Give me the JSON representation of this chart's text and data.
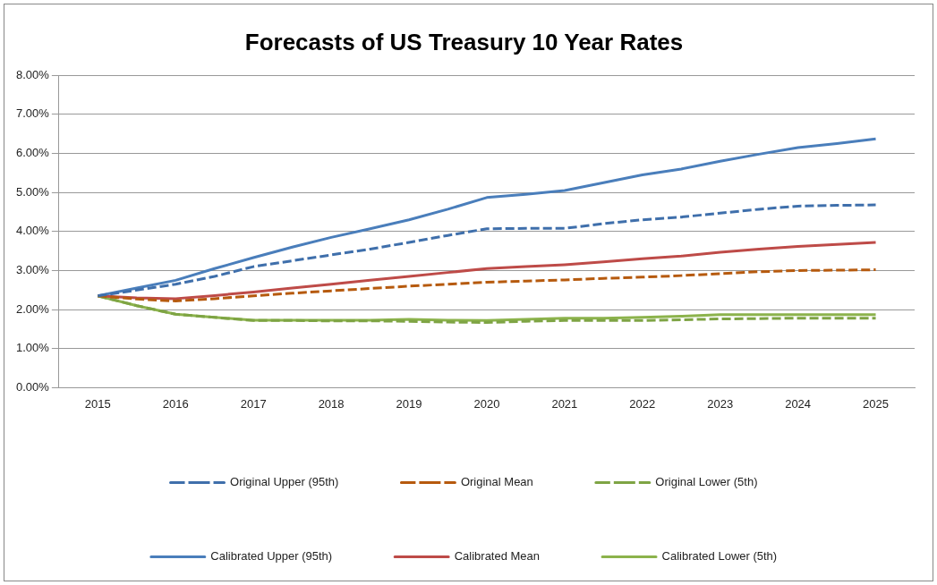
{
  "chart_data": {
    "type": "line",
    "title": "Forecasts of US Treasury 10 Year Rates",
    "x": [
      2015,
      2015.5,
      2016,
      2016.5,
      2017,
      2017.5,
      2018,
      2018.5,
      2019,
      2019.5,
      2020,
      2020.5,
      2021,
      2021.5,
      2022,
      2022.5,
      2023,
      2023.5,
      2024,
      2024.5,
      2025
    ],
    "xlim": [
      2014.5,
      2025.5
    ],
    "xticks": [
      2015,
      2016,
      2017,
      2018,
      2019,
      2020,
      2021,
      2022,
      2023,
      2024,
      2025
    ],
    "ylim": [
      0,
      8
    ],
    "yticks": [
      {
        "value": 0,
        "label": "0.00%"
      },
      {
        "value": 1,
        "label": "1.00%"
      },
      {
        "value": 2,
        "label": "2.00%"
      },
      {
        "value": 3,
        "label": "3.00%"
      },
      {
        "value": 4,
        "label": "4.00%"
      },
      {
        "value": 5,
        "label": "5.00%"
      },
      {
        "value": 6,
        "label": "6.00%"
      },
      {
        "value": 7,
        "label": "7.00%"
      },
      {
        "value": 8,
        "label": "8.00%"
      }
    ],
    "grid": "y",
    "legend": "bottom",
    "marker": "none",
    "series": [
      {
        "name": "Calibrated Upper (95th)",
        "color": "#4a7ebb",
        "line_style": "solid",
        "values": [
          2.35,
          2.55,
          2.75,
          3.05,
          3.33,
          3.6,
          3.85,
          4.07,
          4.3,
          4.57,
          4.87,
          4.95,
          5.05,
          5.25,
          5.45,
          5.6,
          5.8,
          5.98,
          6.15,
          6.25,
          6.37
        ]
      },
      {
        "name": "Calibrated Mean",
        "color": "#be4b48",
        "line_style": "solid",
        "values": [
          2.35,
          2.3,
          2.28,
          2.36,
          2.45,
          2.55,
          2.65,
          2.75,
          2.85,
          2.95,
          3.05,
          3.1,
          3.15,
          3.22,
          3.3,
          3.37,
          3.47,
          3.55,
          3.62,
          3.67,
          3.72
        ]
      },
      {
        "name": "Calibrated Lower (5th)",
        "color": "#8cb34c",
        "line_style": "solid",
        "values": [
          2.35,
          2.1,
          1.88,
          1.8,
          1.73,
          1.73,
          1.73,
          1.73,
          1.75,
          1.73,
          1.72,
          1.75,
          1.78,
          1.78,
          1.8,
          1.83,
          1.87,
          1.87,
          1.87,
          1.87,
          1.87
        ]
      },
      {
        "name": "Original Upper (95th)",
        "color": "#3f6fab",
        "line_style": "dashed",
        "values": [
          2.35,
          2.5,
          2.65,
          2.85,
          3.1,
          3.25,
          3.4,
          3.55,
          3.72,
          3.9,
          4.07,
          4.08,
          4.08,
          4.2,
          4.3,
          4.37,
          4.47,
          4.57,
          4.65,
          4.67,
          4.68
        ]
      },
      {
        "name": "Original Mean",
        "color": "#b65a0e",
        "line_style": "dashed",
        "values": [
          2.35,
          2.27,
          2.22,
          2.28,
          2.35,
          2.42,
          2.48,
          2.54,
          2.6,
          2.65,
          2.7,
          2.73,
          2.76,
          2.8,
          2.83,
          2.87,
          2.92,
          2.97,
          3.0,
          3.01,
          3.02
        ]
      },
      {
        "name": "Original Lower (5th)",
        "color": "#7ea444",
        "line_style": "dashed",
        "values": [
          2.35,
          2.1,
          1.88,
          1.8,
          1.72,
          1.72,
          1.71,
          1.71,
          1.7,
          1.68,
          1.67,
          1.7,
          1.72,
          1.72,
          1.72,
          1.74,
          1.76,
          1.77,
          1.78,
          1.78,
          1.78
        ]
      }
    ]
  }
}
